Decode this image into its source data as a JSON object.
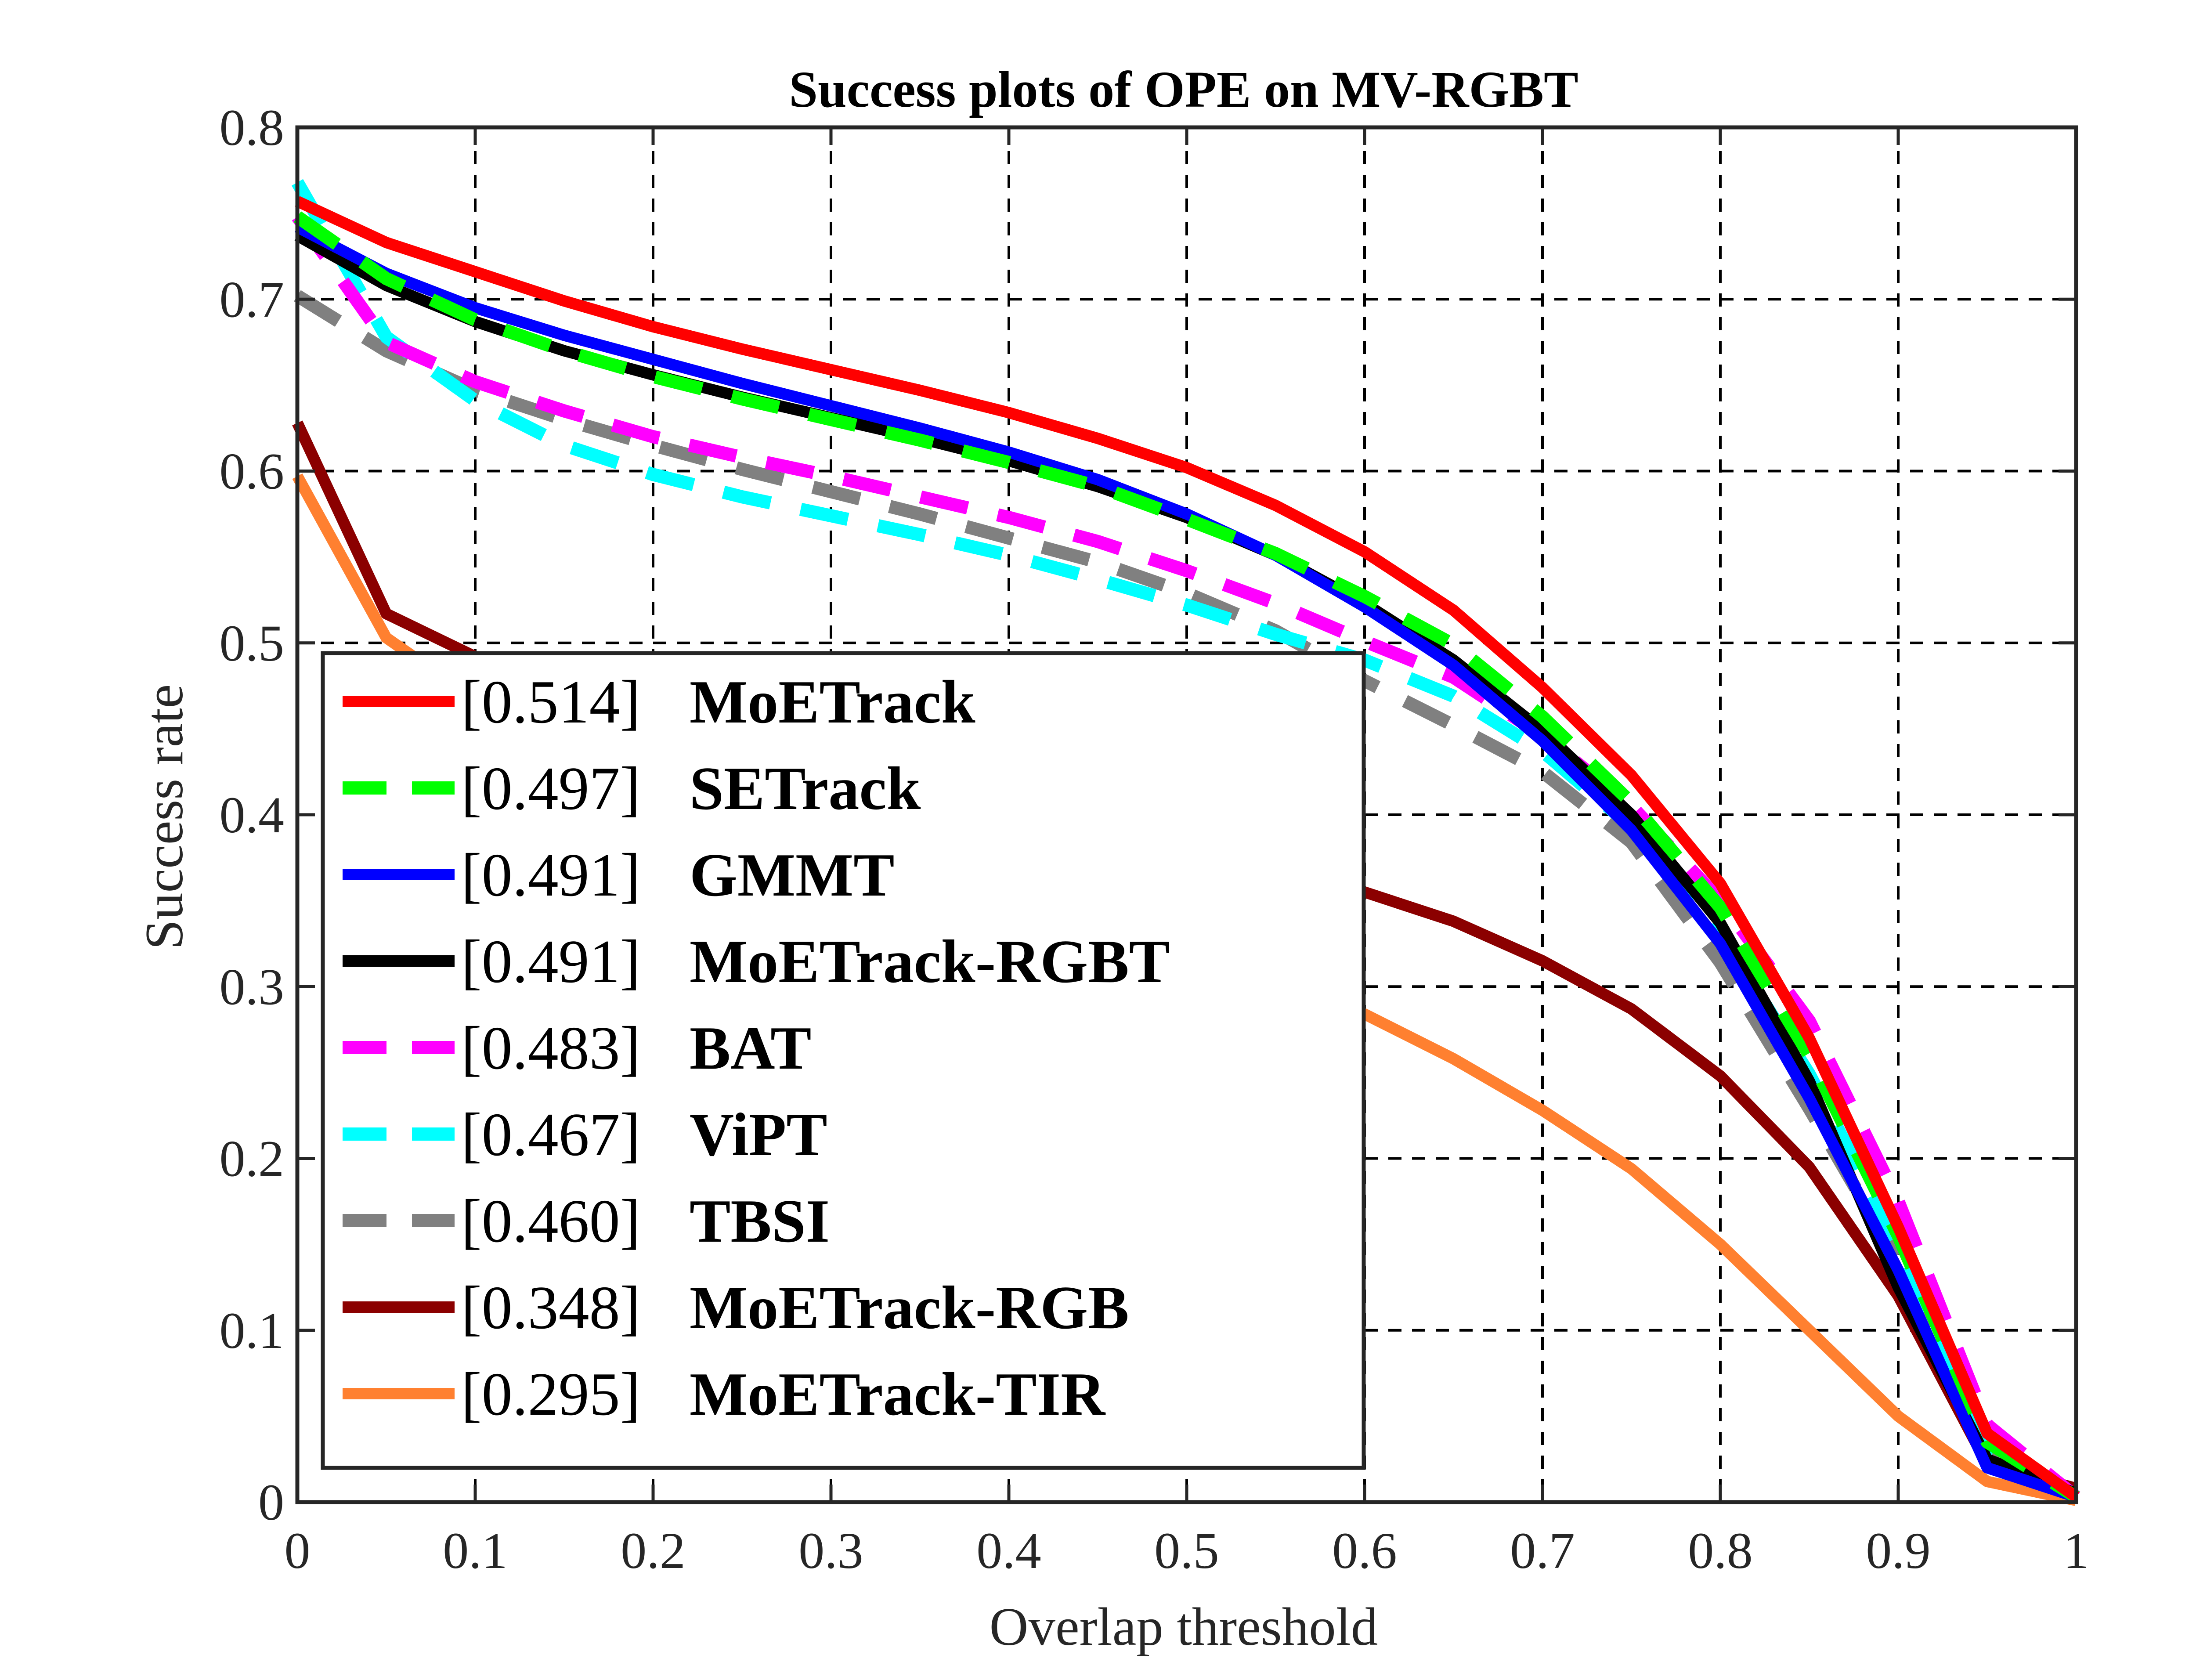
{
  "chart_data": {
    "type": "line",
    "title": "Success plots of OPE on MV-RGBT",
    "xlabel": "Overlap threshold",
    "ylabel": "Success rate",
    "xlim": [
      0,
      1
    ],
    "ylim": [
      0,
      0.8
    ],
    "xticks": [
      "0",
      "0.1",
      "0.2",
      "0.3",
      "0.4",
      "0.5",
      "0.6",
      "0.7",
      "0.8",
      "0.9",
      "1"
    ],
    "yticks": [
      "0",
      "0.1",
      "0.2",
      "0.3",
      "0.4",
      "0.5",
      "0.6",
      "0.7",
      "0.8"
    ],
    "grid": true,
    "legend_position": "lower-left",
    "x": [
      0,
      0.05,
      0.1,
      0.15,
      0.2,
      0.25,
      0.3,
      0.35,
      0.4,
      0.45,
      0.5,
      0.55,
      0.6,
      0.65,
      0.7,
      0.75,
      0.8,
      0.85,
      0.9,
      0.95,
      1.0
    ],
    "series": [
      {
        "name": "MoETrack",
        "score": "[0.514]",
        "color": "#ff0000",
        "dash": "solid",
        "values": [
          0.757,
          0.733,
          0.716,
          0.699,
          0.684,
          0.671,
          0.659,
          0.647,
          0.634,
          0.619,
          0.602,
          0.58,
          0.553,
          0.519,
          0.474,
          0.423,
          0.36,
          0.27,
          0.16,
          0.04,
          0.003
        ]
      },
      {
        "name": "SETrack",
        "score": "[0.497]",
        "color": "#00ff00",
        "dash": "dashed",
        "values": [
          0.748,
          0.712,
          0.688,
          0.67,
          0.655,
          0.642,
          0.63,
          0.618,
          0.605,
          0.591,
          0.572,
          0.552,
          0.527,
          0.499,
          0.457,
          0.407,
          0.346,
          0.26,
          0.155,
          0.035,
          0.003
        ]
      },
      {
        "name": "GMMT",
        "score": "[0.491]",
        "color": "#0000ff",
        "dash": "solid",
        "values": [
          0.742,
          0.715,
          0.695,
          0.679,
          0.665,
          0.651,
          0.638,
          0.625,
          0.611,
          0.595,
          0.575,
          0.551,
          0.521,
          0.487,
          0.443,
          0.391,
          0.325,
          0.235,
          0.135,
          0.02,
          0.003
        ]
      },
      {
        "name": "MoETrack-RGBT",
        "score": "[0.491]",
        "color": "#000000",
        "dash": "solid",
        "values": [
          0.737,
          0.708,
          0.687,
          0.67,
          0.656,
          0.643,
          0.631,
          0.619,
          0.606,
          0.591,
          0.573,
          0.551,
          0.523,
          0.49,
          0.449,
          0.4,
          0.337,
          0.245,
          0.125,
          0.025,
          0.005
        ]
      },
      {
        "name": "BAT",
        "score": "[0.483]",
        "color": "#ff00ff",
        "dash": "dashed",
        "values": [
          0.748,
          0.675,
          0.652,
          0.635,
          0.62,
          0.608,
          0.597,
          0.585,
          0.573,
          0.559,
          0.542,
          0.523,
          0.501,
          0.48,
          0.446,
          0.405,
          0.35,
          0.28,
          0.175,
          0.045,
          0.003
        ]
      },
      {
        "name": "ViPT",
        "score": "[0.467]",
        "color": "#00ffff",
        "dash": "dashed",
        "values": [
          0.768,
          0.678,
          0.641,
          0.615,
          0.598,
          0.585,
          0.574,
          0.563,
          0.551,
          0.537,
          0.522,
          0.505,
          0.49,
          0.469,
          0.437,
          0.393,
          0.331,
          0.249,
          0.15,
          0.03,
          0.003
        ]
      },
      {
        "name": "TBSI",
        "score": "[0.460]",
        "color": "#808080",
        "dash": "dashed",
        "values": [
          0.702,
          0.67,
          0.647,
          0.63,
          0.615,
          0.601,
          0.588,
          0.575,
          0.561,
          0.547,
          0.529,
          0.507,
          0.478,
          0.452,
          0.425,
          0.384,
          0.314,
          0.229,
          0.14,
          0.03,
          0.003
        ]
      },
      {
        "name": "MoETrack-RGB",
        "score": "[0.348]",
        "color": "#8b0000",
        "dash": "solid",
        "values": [
          0.628,
          0.517,
          0.492,
          0.465,
          0.445,
          0.427,
          0.411,
          0.396,
          0.384,
          0.374,
          0.364,
          0.36,
          0.355,
          0.338,
          0.315,
          0.287,
          0.248,
          0.195,
          0.12,
          0.022,
          0.008
        ]
      },
      {
        "name": "MoETrack-TIR",
        "score": "[0.295]",
        "color": "#ff8030",
        "dash": "solid",
        "values": [
          0.597,
          0.503,
          0.467,
          0.432,
          0.408,
          0.385,
          0.366,
          0.347,
          0.33,
          0.316,
          0.303,
          0.29,
          0.284,
          0.258,
          0.228,
          0.194,
          0.15,
          0.1,
          0.05,
          0.012,
          0.001
        ]
      }
    ]
  }
}
